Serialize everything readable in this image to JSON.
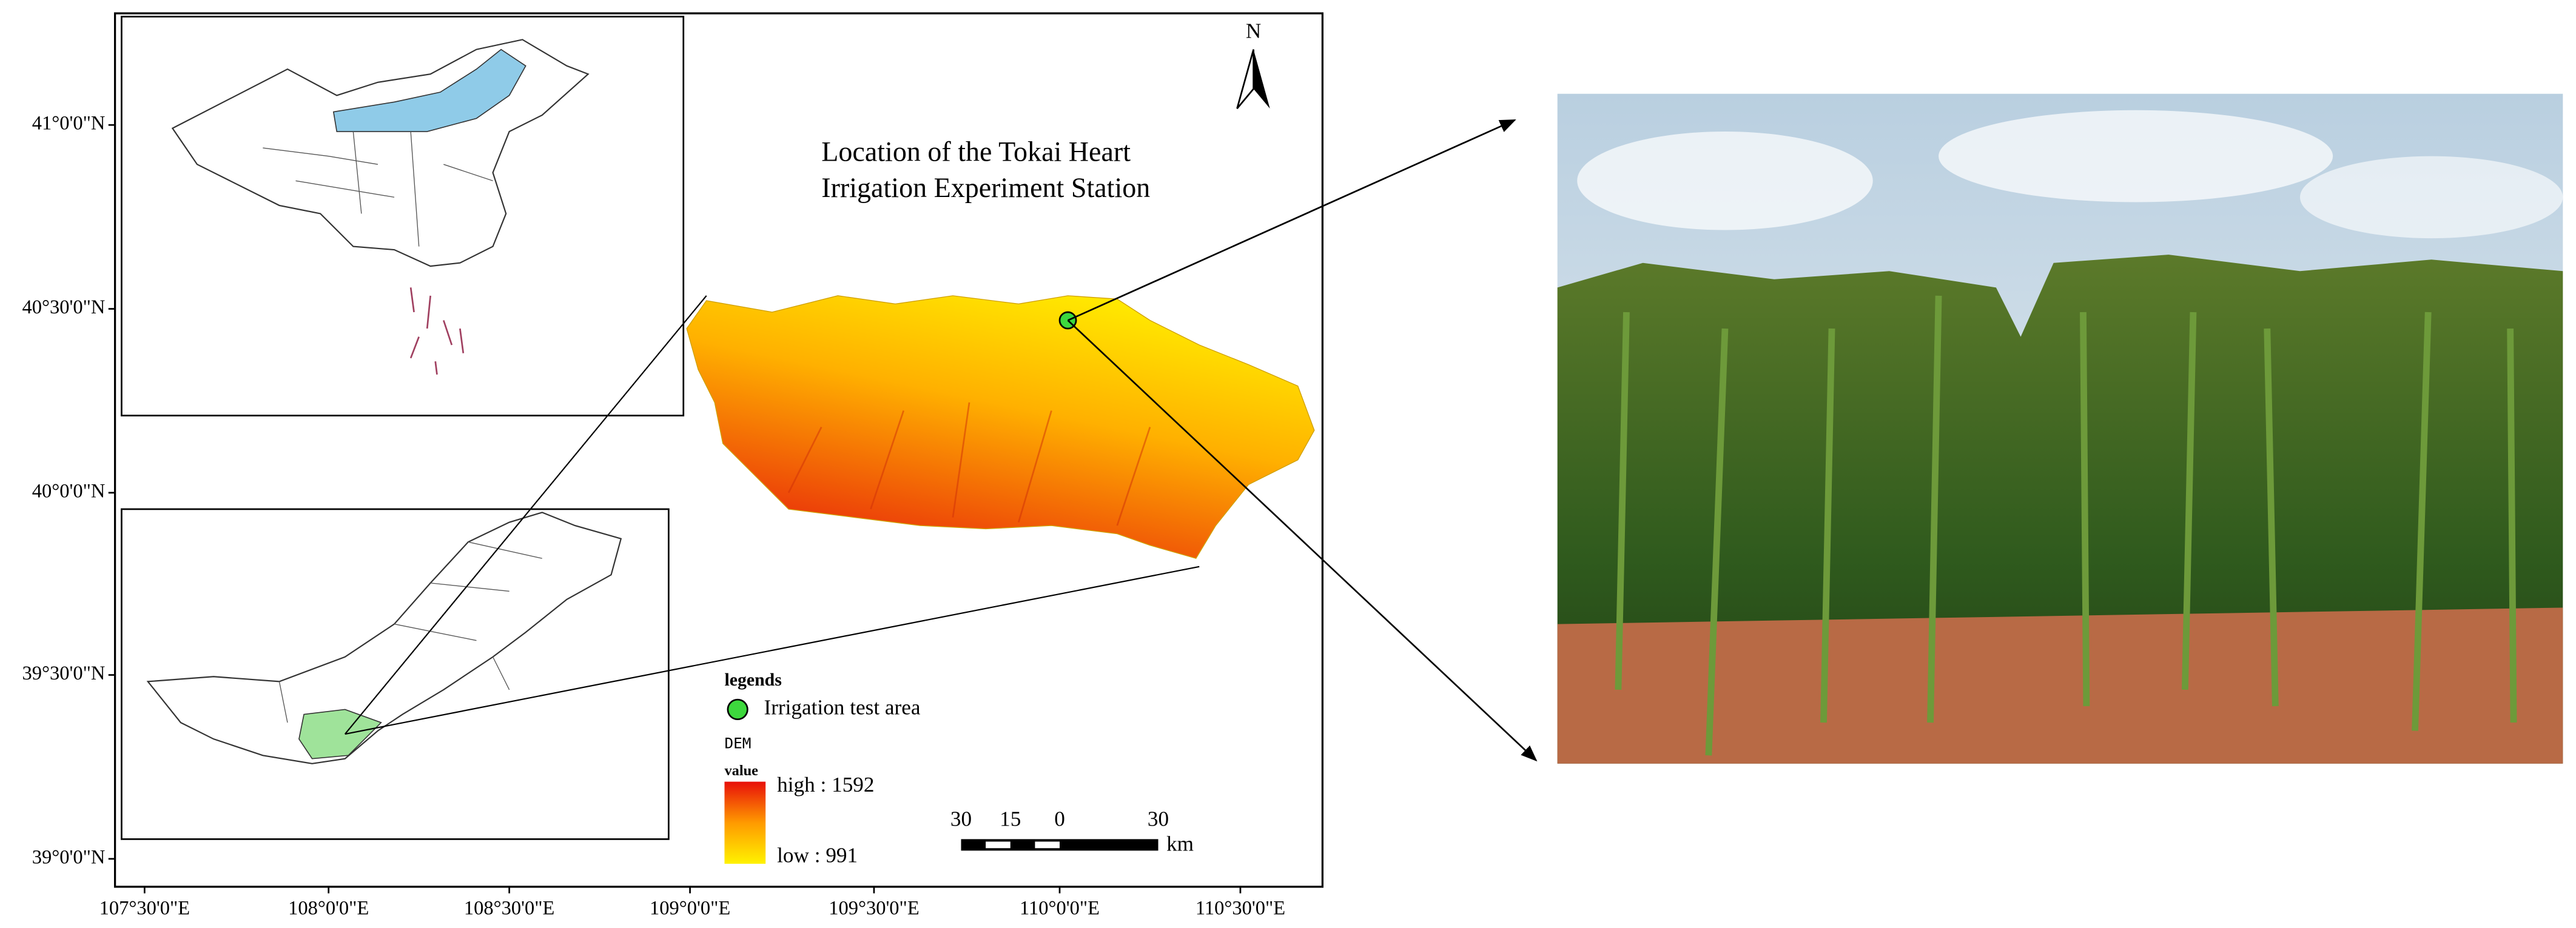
{
  "map": {
    "north": "N",
    "title": [
      "Location of the Tokai Heart",
      "Irrigation Experiment Station"
    ],
    "latitude_labels": [
      "41°0'0\"N",
      "40°30'0\"N",
      "40°0'0\"N",
      "39°30'0\"N",
      "39°0'0\"N"
    ],
    "longitude_labels": [
      "107°30'0\"E",
      "108°0'0\"E",
      "108°30'0\"E",
      "109°0'0\"E",
      "109°30'0\"E",
      "110°0'0\"E",
      "110°30'0\"E"
    ],
    "legend": {
      "title": "legends",
      "point": "Irrigation test area",
      "raster": "DEM",
      "field": "value",
      "high": "high : 1592",
      "low": "low : 991"
    },
    "scale_bar": {
      "labels": [
        "30",
        "15",
        "0",
        "30"
      ],
      "unit": "km"
    }
  }
}
